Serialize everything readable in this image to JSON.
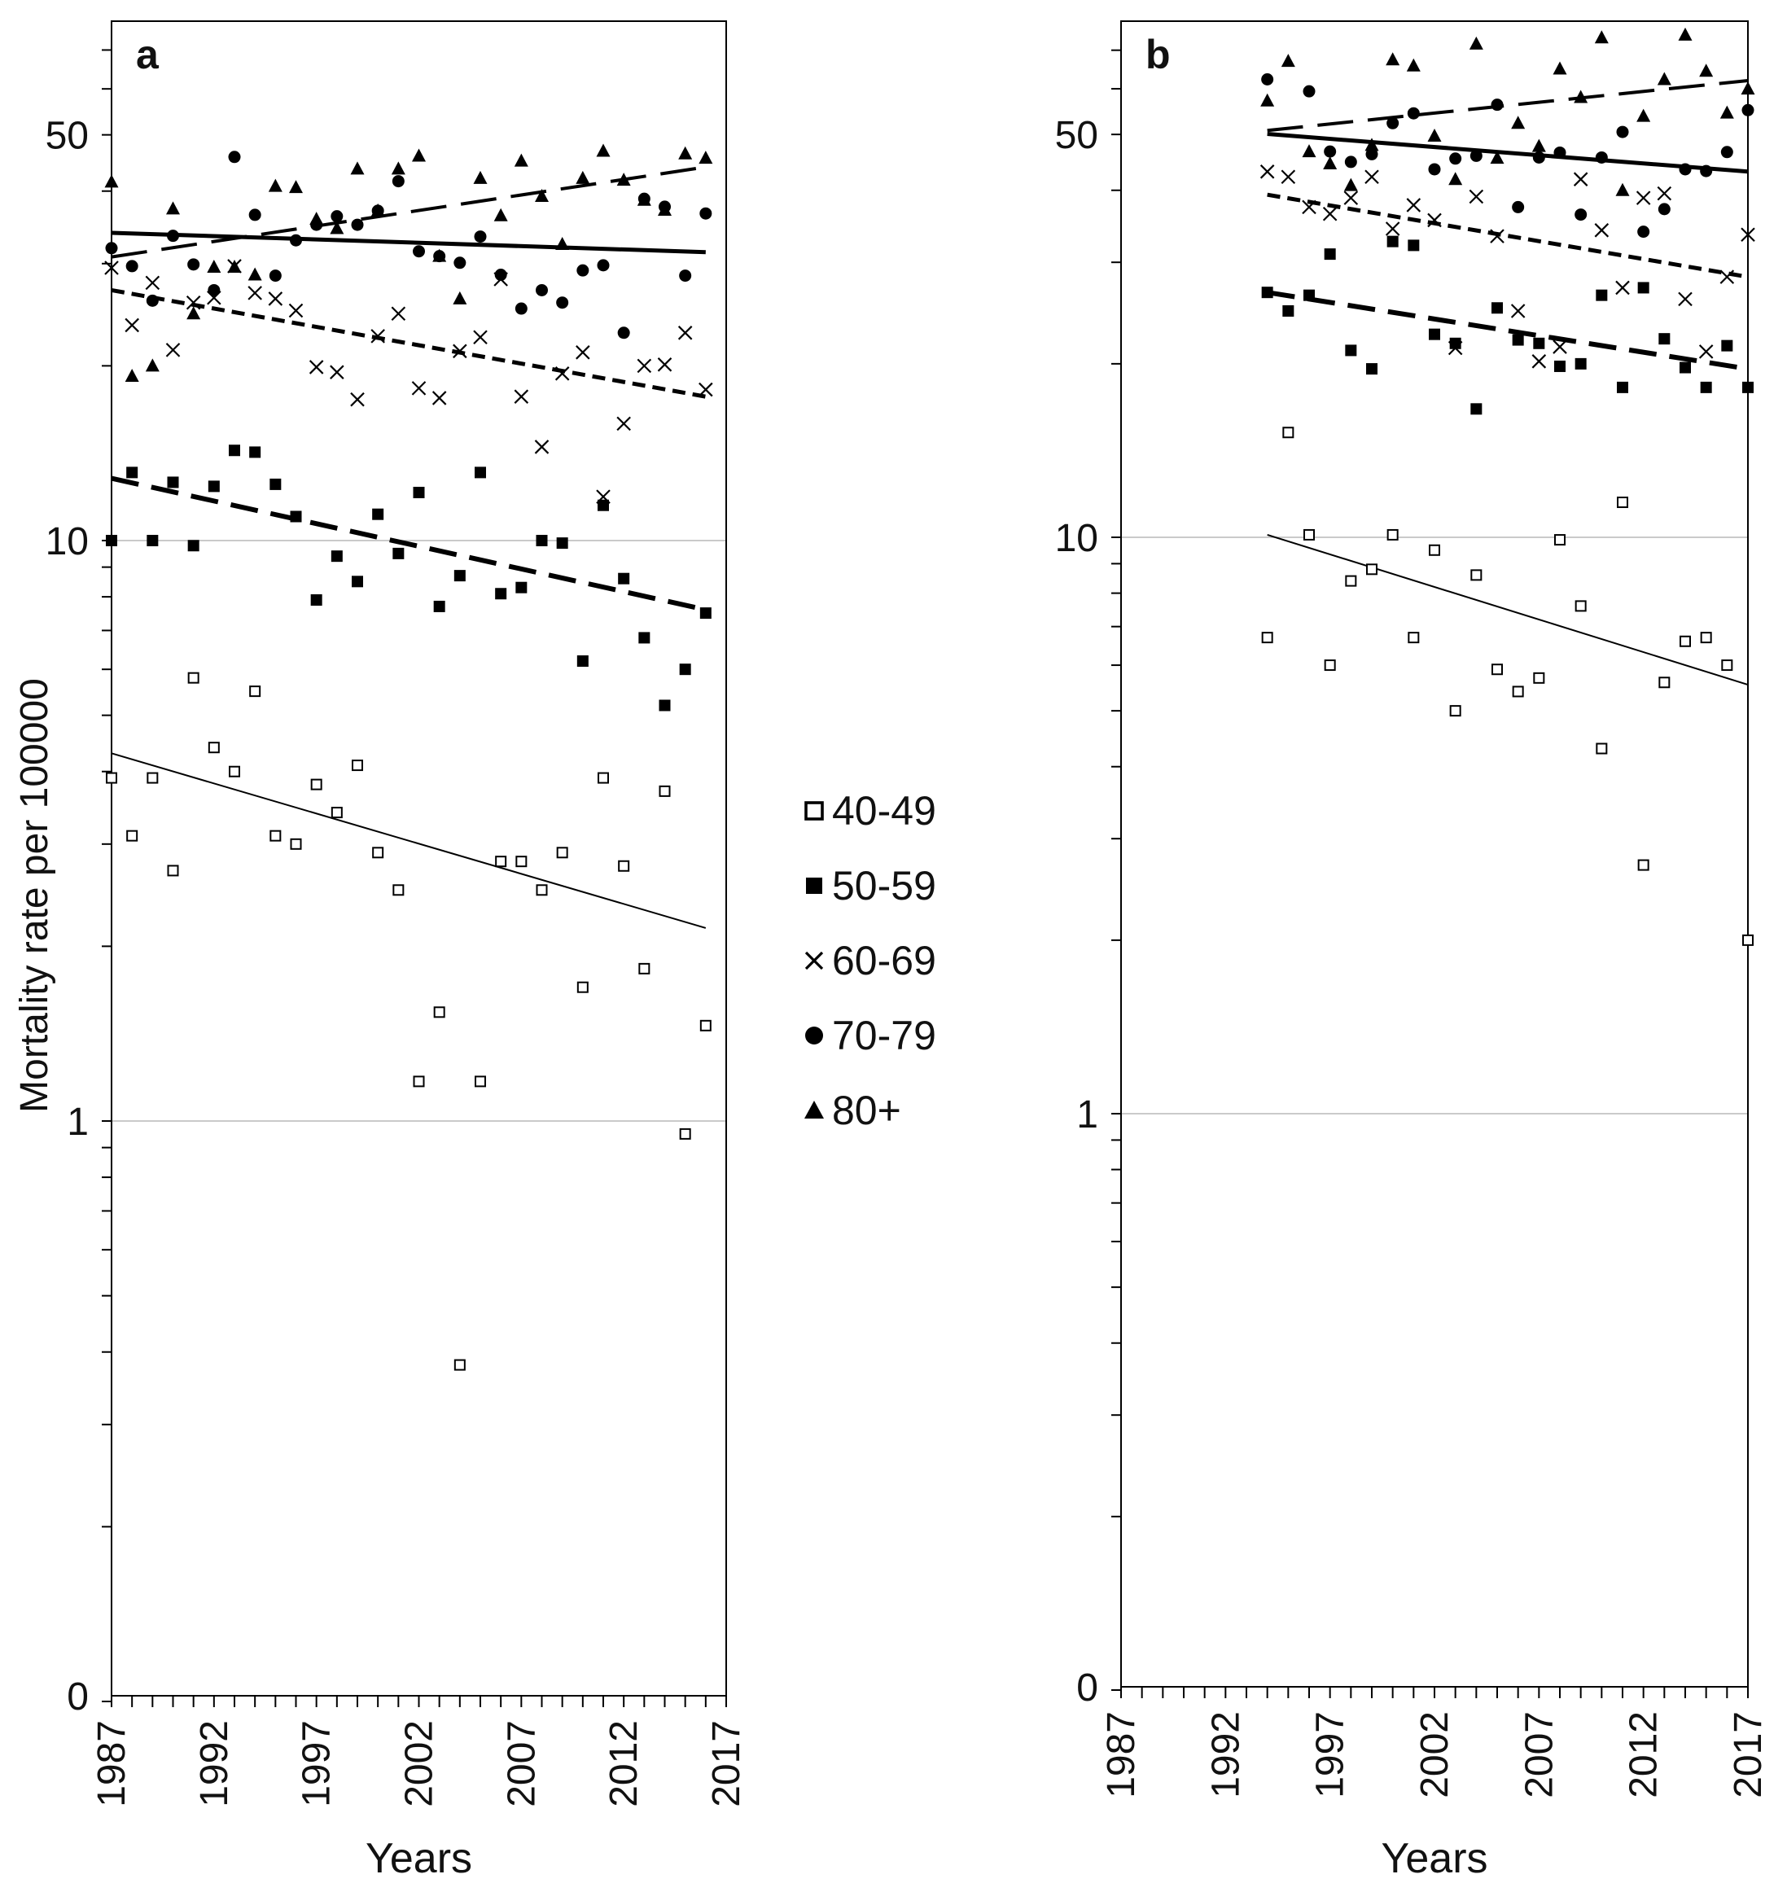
{
  "chart_data": [
    {
      "panel": "a",
      "type": "scatter",
      "title": "",
      "xlabel": "Years",
      "ylabel": "Mortality rate per 100000",
      "yscale": "log",
      "ylim": [
        0.1,
        100
      ],
      "xlim": [
        1987,
        2017
      ],
      "x_ticks": [
        "1987",
        "1992",
        "1997",
        "2002",
        "2007",
        "2012",
        "2017"
      ],
      "y_ticks": [
        {
          "value": 0.1,
          "label": "0"
        },
        {
          "value": 1,
          "label": "1"
        },
        {
          "value": 10,
          "label": "10"
        },
        {
          "value": 50,
          "label": "50"
        }
      ],
      "gridlines_at": [
        1,
        10
      ],
      "series": [
        {
          "name": "40-49",
          "marker": "open-square",
          "x": [
            1987,
            1988,
            1989,
            1990,
            1991,
            1992,
            1993,
            1994,
            1995,
            1996,
            1997,
            1998,
            1999,
            2000,
            2001,
            2002,
            2003,
            2004,
            2005,
            2006,
            2007,
            2008,
            2009,
            2010,
            2011,
            2012,
            2013,
            2014,
            2015,
            2016
          ],
          "values": [
            3.9,
            3.1,
            3.9,
            2.7,
            5.8,
            4.4,
            4.0,
            5.5,
            3.1,
            3.0,
            3.8,
            3.4,
            4.1,
            2.9,
            2.5,
            1.17,
            1.54,
            0.38,
            1.17,
            2.8,
            2.8,
            2.5,
            2.9,
            1.7,
            3.9,
            2.75,
            1.83,
            3.7,
            0.95,
            1.46
          ],
          "trend": {
            "style": "thin-solid",
            "y_start": 4.3,
            "y_end": 2.15
          }
        },
        {
          "name": "50-59",
          "marker": "filled-square",
          "x": [
            1987,
            1988,
            1989,
            1990,
            1991,
            1992,
            1993,
            1994,
            1995,
            1996,
            1997,
            1998,
            1999,
            2000,
            2001,
            2002,
            2003,
            2004,
            2005,
            2006,
            2007,
            2008,
            2009,
            2010,
            2011,
            2012,
            2013,
            2014,
            2015,
            2016
          ],
          "values": [
            10.0,
            13.1,
            10.0,
            12.6,
            9.8,
            12.4,
            14.3,
            14.2,
            12.5,
            11.0,
            7.9,
            9.4,
            8.5,
            11.1,
            9.5,
            12.1,
            7.7,
            8.7,
            13.1,
            8.1,
            8.3,
            10.0,
            9.9,
            6.2,
            11.5,
            8.6,
            6.8,
            5.2,
            6.0,
            7.5
          ],
          "trend": {
            "style": "heavy-dash",
            "y_start": 12.8,
            "y_end": 7.6
          }
        },
        {
          "name": "60-69",
          "marker": "cross",
          "x": [
            1987,
            1988,
            1989,
            1990,
            1991,
            1992,
            1993,
            1994,
            1995,
            1996,
            1997,
            1998,
            1999,
            2000,
            2001,
            2002,
            2003,
            2004,
            2005,
            2006,
            2007,
            2008,
            2009,
            2010,
            2011,
            2012,
            2013,
            2014,
            2015,
            2016
          ],
          "values": [
            29.5,
            23.5,
            27.8,
            21.3,
            25.7,
            26.2,
            29.7,
            26.7,
            26.1,
            24.9,
            19.9,
            19.5,
            17.5,
            22.5,
            24.6,
            18.3,
            17.6,
            21.2,
            22.4,
            28.2,
            17.7,
            14.5,
            19.4,
            21.1,
            11.9,
            15.9,
            20.0,
            20.1,
            22.8,
            18.2
          ],
          "trend": {
            "style": "medium-dash",
            "y_start": 27.0,
            "y_end": 17.7
          }
        },
        {
          "name": "70-79",
          "marker": "filled-circle",
          "x": [
            1987,
            1988,
            1989,
            1990,
            1991,
            1992,
            1993,
            1994,
            1995,
            1996,
            1997,
            1998,
            1999,
            2000,
            2001,
            2002,
            2003,
            2004,
            2005,
            2006,
            2007,
            2008,
            2009,
            2010,
            2011,
            2012,
            2013,
            2014,
            2015,
            2016
          ],
          "values": [
            31.9,
            29.7,
            25.9,
            33.5,
            29.9,
            27.0,
            45.8,
            36.4,
            28.6,
            32.9,
            35.0,
            36.2,
            35.0,
            37.0,
            41.6,
            31.5,
            30.9,
            30.1,
            33.4,
            28.7,
            25.1,
            27.0,
            25.7,
            29.2,
            29.8,
            22.8,
            38.8,
            37.6,
            28.6,
            36.6
          ],
          "trend": {
            "style": "heavy-solid",
            "y_start": 33.9,
            "y_end": 31.4
          }
        },
        {
          "name": "80+",
          "marker": "filled-triangle",
          "x": [
            1987,
            1988,
            1989,
            1990,
            1991,
            1992,
            1993,
            1994,
            1995,
            1996,
            1997,
            1998,
            1999,
            2000,
            2001,
            2002,
            2003,
            2004,
            2005,
            2006,
            2007,
            2008,
            2009,
            2010,
            2011,
            2012,
            2013,
            2014,
            2015,
            2016
          ],
          "values": [
            41.5,
            19.2,
            20.0,
            37.3,
            24.6,
            29.6,
            29.6,
            28.7,
            40.8,
            40.6,
            35.8,
            34.5,
            43.7,
            37.0,
            43.7,
            46.0,
            30.9,
            26.1,
            42.1,
            36.3,
            45.1,
            39.2,
            32.4,
            42.1,
            46.9,
            41.8,
            38.6,
            37.1,
            46.4,
            45.6
          ],
          "trend": {
            "style": "long-dash",
            "y_start": 30.8,
            "y_end": 44.0
          }
        }
      ]
    },
    {
      "panel": "b",
      "type": "scatter",
      "title": "",
      "xlabel": "Years",
      "ylabel": "",
      "yscale": "log",
      "ylim": [
        0.1,
        100
      ],
      "xlim": [
        1987,
        2017
      ],
      "x_ticks": [
        "1987",
        "1992",
        "1997",
        "2002",
        "2007",
        "2012",
        "2017"
      ],
      "y_ticks": [
        {
          "value": 0.1,
          "label": "0"
        },
        {
          "value": 1,
          "label": "1"
        },
        {
          "value": 10,
          "label": "10"
        },
        {
          "value": 50,
          "label": "50"
        }
      ],
      "gridlines_at": [
        1,
        10
      ],
      "series": [
        {
          "name": "40-49",
          "marker": "open-square",
          "x": [
            1994,
            1995,
            1996,
            1997,
            1998,
            1999,
            2000,
            2001,
            2002,
            2003,
            2004,
            2005,
            2006,
            2007,
            2008,
            2009,
            2010,
            2011,
            2012,
            2013,
            2014,
            2015,
            2016,
            2017
          ],
          "values": [
            6.7,
            15.2,
            10.1,
            6.0,
            8.4,
            8.8,
            10.1,
            6.7,
            9.5,
            5.0,
            8.6,
            5.9,
            5.4,
            5.7,
            9.9,
            7.6,
            4.3,
            11.5,
            2.7,
            5.6,
            6.6,
            6.7,
            6.0,
            2.0
          ],
          "trend": {
            "style": "thin-solid",
            "y_start": 10.1,
            "y_end": 5.55
          }
        },
        {
          "name": "50-59",
          "marker": "filled-square",
          "x": [
            1994,
            1995,
            1996,
            1997,
            1998,
            1999,
            2000,
            2001,
            2002,
            2003,
            2004,
            2005,
            2006,
            2007,
            2008,
            2009,
            2010,
            2011,
            2012,
            2013,
            2014,
            2015,
            2016,
            2017
          ],
          "values": [
            26.6,
            24.7,
            26.3,
            31.0,
            21.1,
            19.6,
            32.6,
            32.1,
            22.5,
            21.7,
            16.7,
            25.0,
            22.0,
            21.7,
            19.8,
            20.0,
            26.3,
            18.2,
            27.1,
            22.1,
            19.7,
            18.2,
            21.5,
            18.2
          ],
          "trend": {
            "style": "heavy-dash",
            "y_start": 26.6,
            "y_end": 19.6
          }
        },
        {
          "name": "60-69",
          "marker": "cross",
          "x": [
            1994,
            1995,
            1996,
            1997,
            1998,
            1999,
            2000,
            2001,
            2002,
            2003,
            2004,
            2005,
            2006,
            2007,
            2008,
            2009,
            2010,
            2011,
            2012,
            2013,
            2014,
            2015,
            2016,
            2017
          ],
          "values": [
            43.1,
            42.2,
            37.4,
            36.4,
            38.8,
            42.2,
            34.3,
            37.7,
            35.5,
            21.3,
            39.0,
            33.3,
            24.7,
            20.2,
            21.4,
            41.8,
            34.1,
            27.1,
            38.8,
            39.5,
            25.9,
            21.0,
            28.3,
            33.5
          ],
          "trend": {
            "style": "medium-dash",
            "y_start": 39.3,
            "y_end": 28.3
          }
        },
        {
          "name": "70-79",
          "marker": "filled-circle",
          "x": [
            1994,
            1995,
            1996,
            1997,
            1998,
            1999,
            2000,
            2001,
            2002,
            2003,
            2004,
            2005,
            2006,
            2007,
            2008,
            2009,
            2010,
            2011,
            2012,
            2013,
            2014,
            2015,
            2016,
            2017
          ],
          "values": [
            62.3,
            null,
            59.4,
            46.7,
            44.8,
            46.2,
            52.3,
            54.4,
            43.5,
            45.4,
            45.9,
            56.3,
            37.4,
            45.6,
            46.5,
            36.3,
            45.6,
            50.5,
            33.9,
            37.1,
            43.5,
            43.2,
            46.6,
            55.1
          ],
          "trend": {
            "style": "heavy-solid",
            "y_start": 50.1,
            "y_end": 43.1
          }
        },
        {
          "name": "80+",
          "marker": "filled-triangle",
          "x": [
            1994,
            1995,
            1996,
            1997,
            1998,
            1999,
            2000,
            2001,
            2002,
            2003,
            2004,
            2005,
            2006,
            2007,
            2008,
            2009,
            2010,
            2011,
            2012,
            2013,
            2014,
            2015,
            2016,
            2017
          ],
          "values": [
            57.2,
            67.0,
            46.7,
            44.5,
            40.8,
            47.9,
            67.4,
            65.8,
            49.7,
            41.8,
            71.8,
            45.5,
            52.3,
            47.7,
            65.0,
            58.0,
            73.6,
            40.0,
            53.8,
            62.3,
            74.4,
            64.4,
            54.5,
            60.0
          ],
          "trend": {
            "style": "long-dash",
            "y_start": 50.8,
            "y_end": 62.0
          }
        }
      ]
    }
  ],
  "legend": {
    "placement": "center-between-panels",
    "entries": [
      {
        "label": "40-49",
        "marker": "open-square"
      },
      {
        "label": "50-59",
        "marker": "filled-square"
      },
      {
        "label": "60-69",
        "marker": "cross"
      },
      {
        "label": "70-79",
        "marker": "filled-circle"
      },
      {
        "label": "80+",
        "marker": "filled-triangle"
      }
    ]
  },
  "colors": {
    "ink": "#000000",
    "grid": "#b8b8b8",
    "background": "#ffffff"
  }
}
